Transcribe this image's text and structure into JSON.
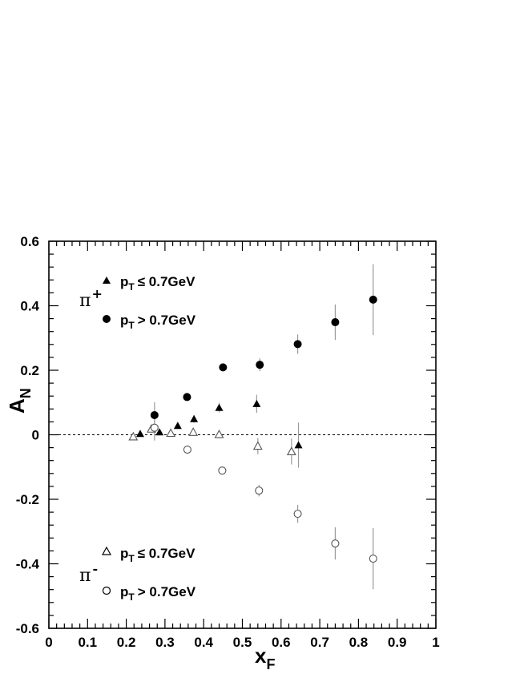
{
  "chart_data": {
    "type": "scatter",
    "title": "",
    "xlabel": "x",
    "xlabel_sub": "F",
    "ylabel": "A",
    "ylabel_sub": "N",
    "xlim": [
      0,
      1
    ],
    "ylim": [
      -0.6,
      0.6
    ],
    "x_ticks": [
      "0",
      "0.1",
      "0.2",
      "0.3",
      "0.4",
      "0.5",
      "0.6",
      "0.7",
      "0.8",
      "0.9",
      "1"
    ],
    "y_ticks": [
      "0.6",
      "0.4",
      "0.2",
      "0",
      "-0.2",
      "-0.4",
      "-0.6"
    ],
    "zero_line": "dashed",
    "groups": [
      {
        "label": "π",
        "sup": "+",
        "position": "top-left"
      },
      {
        "label": "π",
        "sup": "-",
        "position": "bottom-left"
      }
    ],
    "legend_text": {
      "low_pt": "≤ 0.7GeV",
      "high_pt": "> 0.7GeV",
      "p": "p",
      "p_sub": "T"
    },
    "series": [
      {
        "name": "π+ pT ≤ 0.7GeV",
        "marker": "filled-triangle",
        "points": [
          {
            "x": 0.236,
            "y": 0.003,
            "err": 0.008
          },
          {
            "x": 0.286,
            "y": 0.008,
            "err": 0.008
          },
          {
            "x": 0.333,
            "y": 0.028,
            "err": 0.01
          },
          {
            "x": 0.375,
            "y": 0.049,
            "err": 0.012
          },
          {
            "x": 0.44,
            "y": 0.084,
            "err": 0.015
          },
          {
            "x": 0.537,
            "y": 0.096,
            "err": 0.028
          },
          {
            "x": 0.645,
            "y": -0.032,
            "err": 0.07
          }
        ]
      },
      {
        "name": "π+ pT > 0.7GeV",
        "marker": "filled-circle",
        "points": [
          {
            "x": 0.273,
            "y": 0.061,
            "err": 0.04
          },
          {
            "x": 0.357,
            "y": 0.117,
            "err": 0.012
          },
          {
            "x": 0.45,
            "y": 0.209,
            "err": 0.012
          },
          {
            "x": 0.545,
            "y": 0.217,
            "err": 0.02
          },
          {
            "x": 0.643,
            "y": 0.281,
            "err": 0.03
          },
          {
            "x": 0.74,
            "y": 0.349,
            "err": 0.055
          },
          {
            "x": 0.838,
            "y": 0.419,
            "err": 0.11
          }
        ]
      },
      {
        "name": "π- pT ≤ 0.7GeV",
        "marker": "open-triangle",
        "points": [
          {
            "x": 0.218,
            "y": -0.006,
            "err": 0.006
          },
          {
            "x": 0.265,
            "y": 0.018,
            "err": 0.008
          },
          {
            "x": 0.315,
            "y": 0.005,
            "err": 0.008
          },
          {
            "x": 0.373,
            "y": 0.008,
            "err": 0.01
          },
          {
            "x": 0.44,
            "y": 0.001,
            "err": 0.012
          },
          {
            "x": 0.54,
            "y": -0.035,
            "err": 0.025
          },
          {
            "x": 0.627,
            "y": -0.052,
            "err": 0.04
          }
        ]
      },
      {
        "name": "π- pT > 0.7GeV",
        "marker": "open-circle",
        "points": [
          {
            "x": 0.273,
            "y": 0.022,
            "err": 0.04
          },
          {
            "x": 0.358,
            "y": -0.046,
            "err": 0.012
          },
          {
            "x": 0.448,
            "y": -0.111,
            "err": 0.012
          },
          {
            "x": 0.543,
            "y": -0.173,
            "err": 0.018
          },
          {
            "x": 0.643,
            "y": -0.245,
            "err": 0.028
          },
          {
            "x": 0.74,
            "y": -0.337,
            "err": 0.05
          },
          {
            "x": 0.838,
            "y": -0.384,
            "err": 0.095
          }
        ]
      }
    ]
  }
}
